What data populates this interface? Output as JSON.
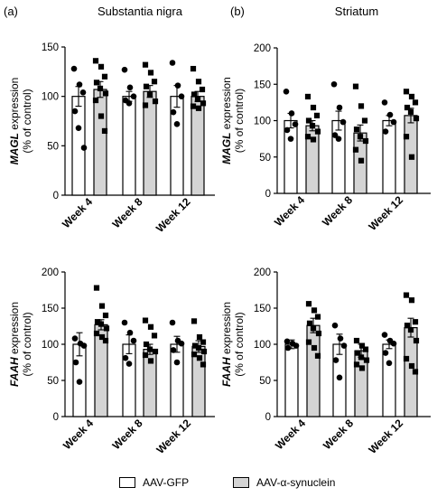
{
  "figure": {
    "legend_white": "AAV-GFP",
    "legend_gray": "AAV-α-synuclein",
    "colors": {
      "gfp_fill": "#ffffff",
      "syn_fill": "#d4d4d4",
      "stroke": "#000000"
    }
  },
  "chart_data": [
    {
      "type": "bar",
      "panel": "(a)",
      "title": "Substantia nigra",
      "ylabel_gene": "MAGL",
      "ylabel_rest": " expression",
      "ylabel_line2": "(% of control)",
      "ylim": [
        0,
        150
      ],
      "yticks": [
        0,
        50,
        100,
        150
      ],
      "categories": [
        "Week 4",
        "Week 8",
        "Week 12"
      ],
      "series": [
        {
          "name": "AAV-GFP",
          "values": [
            100,
            100,
            100
          ],
          "sem": [
            10,
            5,
            11
          ],
          "points": [
            [
              128,
              112,
              104,
              85,
              68,
              48
            ],
            [
              127,
              109,
              100,
              96,
              93
            ],
            [
              134,
              111,
              100,
              84,
              72
            ]
          ]
        },
        {
          "name": "AAV-α-synuclein",
          "values": [
            107,
            105,
            100
          ],
          "sem": [
            8,
            6,
            5
          ],
          "points": [
            [
              136,
              130,
              120,
              114,
              108,
              103,
              96,
              80,
              65
            ],
            [
              132,
              124,
              115,
              110,
              102,
              95,
              91
            ],
            [
              128,
              115,
              107,
              102,
              97,
              93,
              90,
              88
            ]
          ]
        }
      ]
    },
    {
      "type": "bar",
      "panel": "(b)",
      "title": "Striatum",
      "ylabel_gene": "MAGL",
      "ylabel_rest": " expression",
      "ylabel_line2": "(% of control)",
      "ylim": [
        0,
        200
      ],
      "yticks": [
        0,
        50,
        100,
        150,
        200
      ],
      "categories": [
        "Week 4",
        "Week 8",
        "Week 12"
      ],
      "series": [
        {
          "name": "AAV-GFP",
          "values": [
            100,
            100,
            100
          ],
          "sem": [
            10,
            13,
            7
          ],
          "points": [
            [
              140,
              110,
              95,
              87,
              75
            ],
            [
              150,
              118,
              98,
              80,
              75
            ],
            [
              125,
              108,
              98,
              85
            ]
          ]
        },
        {
          "name": "AAV-α-synuclein",
          "values": [
            93,
            83,
            107
          ],
          "sem": [
            7,
            11,
            10
          ],
          "points": [
            [
              133,
              118,
              107,
              100,
              93,
              85,
              78,
              74
            ],
            [
              147,
              120,
              100,
              88,
              78,
              72,
              60,
              45
            ],
            [
              140,
              133,
              125,
              118,
              112,
              103,
              78,
              50
            ]
          ]
        }
      ]
    },
    {
      "type": "bar",
      "panel": "",
      "title": "",
      "ylabel_gene": "FAAH",
      "ylabel_rest": " expression",
      "ylabel_line2": "(% of control)",
      "ylim": [
        0,
        200
      ],
      "yticks": [
        0,
        50,
        100,
        150,
        200
      ],
      "categories": [
        "Week 4",
        "Week 8",
        "Week 12"
      ],
      "series": [
        {
          "name": "AAV-GFP",
          "values": [
            100,
            100,
            100
          ],
          "sem": [
            16,
            13,
            11
          ],
          "points": [
            [
              108,
              101,
              98,
              75,
              48
            ],
            [
              130,
              116,
              105,
              81,
              73
            ],
            [
              130,
              105,
              101,
              92,
              75
            ]
          ]
        },
        {
          "name": "AAV-α-synuclein",
          "values": [
            127,
            93,
            97
          ],
          "sem": [
            7,
            7,
            8
          ],
          "points": [
            [
              178,
              153,
              140,
              131,
              128,
              122,
              115,
              110,
              105
            ],
            [
              133,
              124,
              112,
              100,
              93,
              90,
              85,
              77
            ],
            [
              132,
              110,
              103,
              98,
              95,
              90,
              86,
              81,
              72
            ]
          ]
        }
      ]
    },
    {
      "type": "bar",
      "panel": "",
      "title": "",
      "ylabel_gene": "FAAH",
      "ylabel_rest": " expression",
      "ylabel_line2": "(% of control)",
      "ylim": [
        0,
        200
      ],
      "yticks": [
        0,
        50,
        100,
        150,
        200
      ],
      "categories": [
        "Week 4",
        "Week 8",
        "Week 12"
      ],
      "series": [
        {
          "name": "AAV-GFP",
          "values": [
            100,
            100,
            100
          ],
          "sem": [
            6,
            14,
            6
          ],
          "points": [
            [
              104,
              101,
              98,
              95
            ],
            [
              126,
              108,
              98,
              78,
              54
            ],
            [
              113,
              105,
              101,
              88,
              74
            ]
          ]
        },
        {
          "name": "AAV-α-synuclein",
          "values": [
            126,
            91,
            123
          ],
          "sem": [
            10,
            9,
            13
          ],
          "points": [
            [
              156,
              147,
              138,
              129,
              122,
              115,
              103,
              95,
              84
            ],
            [
              105,
              98,
              93,
              88,
              82,
              78,
              72,
              67
            ],
            [
              168,
              161,
              131,
              126,
              120,
              105,
              80,
              70,
              62
            ]
          ]
        }
      ]
    }
  ]
}
